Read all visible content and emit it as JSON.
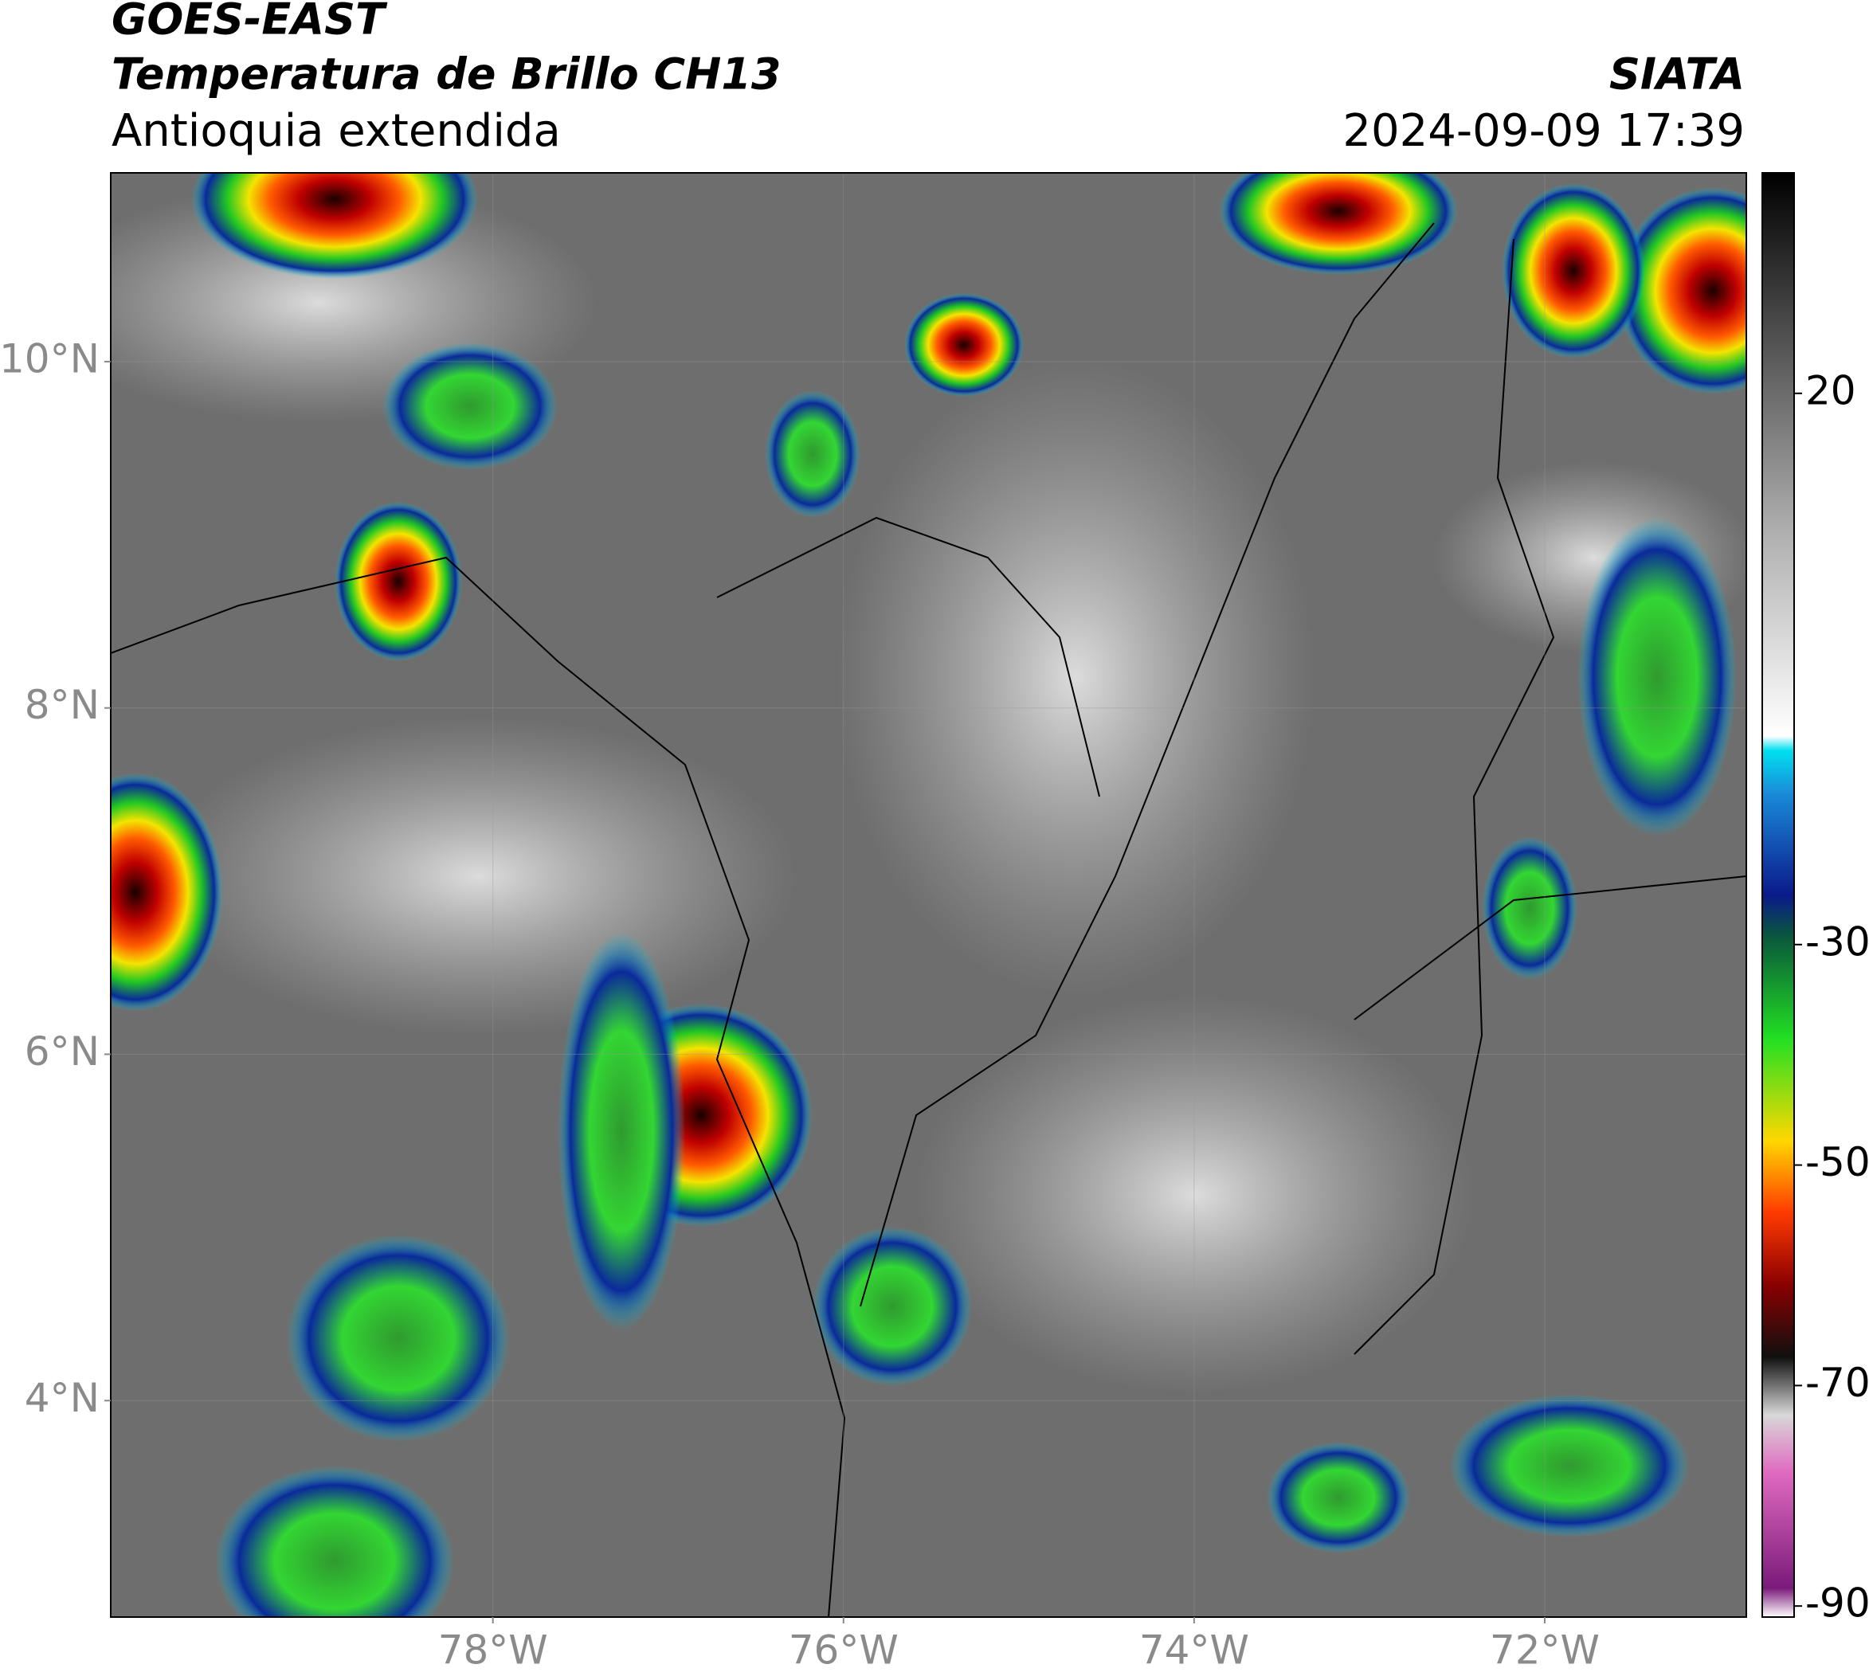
{
  "header": {
    "title": "GOES-EAST",
    "subtitle": "Temperatura de Brillo CH13",
    "region": "Antioquia extendida",
    "source": "SIATA",
    "datetime": "2024-09-09 17:39"
  },
  "map": {
    "xlim": [
      -80.18,
      -70.85
    ],
    "ylim": [
      2.75,
      11.09
    ],
    "xticks": [
      {
        "value": -78,
        "label": "78°W"
      },
      {
        "value": -76,
        "label": "76°W"
      },
      {
        "value": -74,
        "label": "74°W"
      },
      {
        "value": -72,
        "label": "72°W"
      }
    ],
    "yticks": [
      {
        "value": 4,
        "label": "4°N"
      },
      {
        "value": 6,
        "label": "6°N"
      },
      {
        "value": 8,
        "label": "8°N"
      },
      {
        "value": 10,
        "label": "10°N"
      }
    ]
  },
  "colorbar": {
    "ylim": [
      -91,
      40
    ],
    "yticks": [
      20,
      -30,
      -50,
      -70,
      -90
    ]
  }
}
